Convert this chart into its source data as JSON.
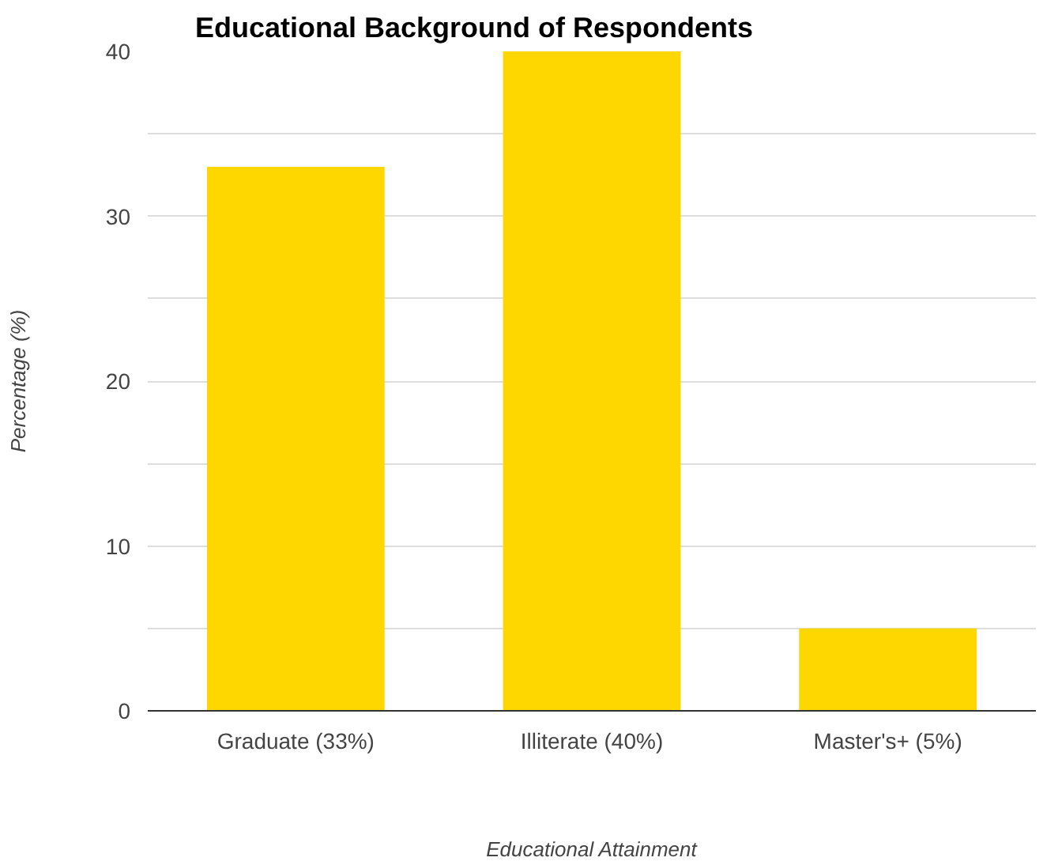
{
  "chart_data": {
    "type": "bar",
    "title": "Educational Background of Respondents",
    "xlabel": "Educational Attainment",
    "ylabel": "Percentage (%)",
    "categories": [
      "Graduate (33%)",
      "Illiterate (40%)",
      "Master's+ (5%)"
    ],
    "values": [
      33,
      40,
      5
    ],
    "color": "#ffd700",
    "ylim": [
      0,
      40
    ],
    "yticks": [
      0,
      {
        "value": 5,
        "label": null
      },
      10,
      {
        "value": 15,
        "label": null
      },
      20,
      {
        "value": 25,
        "label": null
      },
      30,
      {
        "value": 35,
        "label": null
      },
      40
    ],
    "grid": "y"
  }
}
